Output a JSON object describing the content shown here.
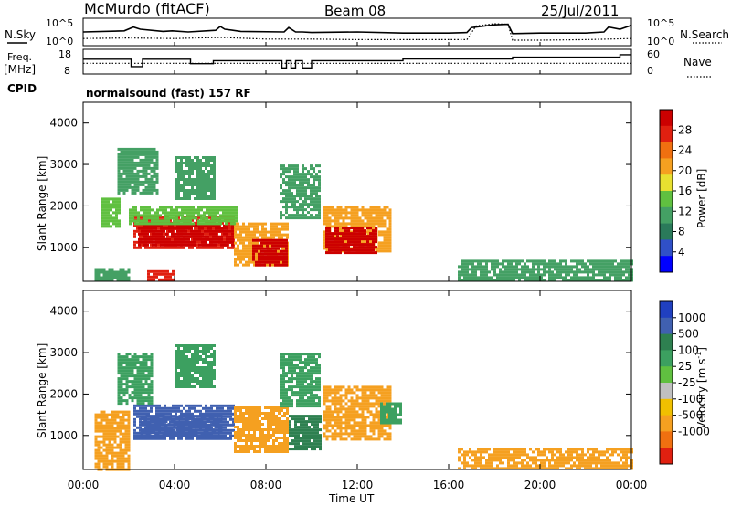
{
  "header": {
    "station": "McMurdo (fitACF)",
    "beam": "Beam 08",
    "date": "25/Jul/2011",
    "left_label_1": "N.Sky",
    "left_label_2_a": "Freq.",
    "left_label_2_b": "[MHz]",
    "left_label_3": "CPID",
    "right_label_1": "N.Search",
    "right_label_2": "Nave",
    "cpid_text": "normalsound (fast) 157 RF"
  },
  "chart_data": [
    {
      "type": "line",
      "panel": "noise",
      "series": [
        {
          "name": "N.Sky",
          "x": [
            0,
            1.8,
            2.2,
            2.5,
            3.5,
            3.9,
            4.6,
            5.8,
            6.0,
            6.2,
            6.9,
            8.8,
            9.0,
            9.3,
            9.6,
            10.0,
            12.0,
            14.0,
            16.0,
            16.8,
            17.0,
            18.0,
            18.6,
            18.8,
            20.0,
            22.0,
            22.8,
            23.0,
            23.5,
            24.0
          ],
          "y": [
            2.5,
            2.7,
            3.4,
            3.0,
            2.6,
            2.7,
            2.5,
            2.8,
            3.5,
            3.0,
            2.6,
            2.5,
            3.3,
            2.5,
            2.5,
            2.4,
            2.5,
            2.3,
            2.3,
            2.4,
            3.3,
            3.8,
            3.9,
            2.2,
            2.3,
            2.3,
            2.5,
            3.4,
            3.0,
            3.7
          ]
        },
        {
          "name": "N.Search",
          "x": [
            0,
            2,
            4,
            6,
            8,
            10,
            12,
            14,
            16,
            16.8,
            17.2,
            18.0,
            18.6,
            18.8,
            20,
            22,
            23,
            24
          ],
          "y": [
            1.3,
            1.4,
            1.3,
            1.5,
            1.2,
            1.2,
            1.1,
            1.1,
            1.1,
            1.1,
            3.6,
            4.0,
            3.9,
            1.0,
            1.0,
            1.1,
            1.2,
            1.3
          ]
        }
      ],
      "y_left_ticks": [
        "10^5",
        "10^0"
      ],
      "y_right_ticks": [
        "10^5",
        "10^0"
      ],
      "ylim": [
        0,
        5
      ]
    },
    {
      "type": "line",
      "panel": "frequency",
      "series": [
        {
          "name": "Freq.",
          "x": [
            0,
            1.9,
            2.1,
            2.4,
            2.6,
            4.5,
            4.7,
            5.5,
            5.7,
            6.2,
            8.5,
            8.7,
            8.9,
            9.1,
            9.3,
            9.6,
            10.0,
            13.8,
            14.0,
            18.6,
            18.8,
            19.5,
            23.0,
            23.5,
            24.0
          ],
          "y": [
            14,
            14,
            11,
            11,
            14,
            14,
            12.2,
            12.2,
            13.4,
            13.4,
            13.4,
            10.5,
            13.4,
            10.5,
            13.4,
            10.5,
            13.4,
            13.4,
            14.1,
            14.1,
            14.8,
            14.8,
            14.8,
            15.8,
            15.8
          ]
        },
        {
          "name": "Nave",
          "x": [
            0,
            4,
            8,
            12,
            16,
            20,
            24
          ],
          "y": [
            26,
            26,
            26,
            26,
            26,
            26,
            26
          ]
        }
      ],
      "y_left_ticks": [
        18,
        8
      ],
      "y_right_ticks": [
        60,
        0
      ],
      "ylim": [
        8,
        18
      ]
    },
    {
      "type": "heatmap",
      "panel": "power",
      "xlabel": "",
      "ylabel": "Slant Range [km]",
      "xlim": [
        0,
        24
      ],
      "ylim": [
        180,
        4500
      ],
      "y_ticks": [
        1000,
        2000,
        3000,
        4000
      ],
      "colorbar_label": "Power [dB]",
      "colorbar_ticks": [
        4,
        8,
        12,
        16,
        20,
        24,
        28
      ],
      "colorbar_colors": [
        "#0000ff",
        "#3050c8",
        "#2a7a5a",
        "#44a064",
        "#60c040",
        "#e8e030",
        "#f5a020",
        "#f07010",
        "#e02010",
        "#cc0000"
      ],
      "regions": [
        {
          "t": [
            2.2,
            6.6
          ],
          "r": [
            1000,
            1750
          ],
          "value": 24
        },
        {
          "t": [
            2.4,
            6.5
          ],
          "r": [
            1050,
            1550
          ],
          "value": 28
        },
        {
          "t": [
            6.6,
            9.0
          ],
          "r": [
            600,
            1600
          ],
          "value": 20
        },
        {
          "t": [
            7.4,
            8.9
          ],
          "r": [
            550,
            1200
          ],
          "value": 28
        },
        {
          "t": [
            10.5,
            13.5
          ],
          "r": [
            900,
            2000
          ],
          "value": 20
        },
        {
          "t": [
            10.6,
            12.8
          ],
          "r": [
            900,
            1500
          ],
          "value": 28
        },
        {
          "t": [
            0.8,
            1.6
          ],
          "r": [
            1500,
            2200
          ],
          "value": 12
        },
        {
          "t": [
            2.0,
            6.8
          ],
          "r": [
            1600,
            2000
          ],
          "value": 12
        },
        {
          "t": [
            1.5,
            3.2
          ],
          "r": [
            2300,
            3400
          ],
          "value": 8
        },
        {
          "t": [
            4.0,
            5.8
          ],
          "r": [
            2200,
            3200
          ],
          "value": 8
        },
        {
          "t": [
            8.6,
            10.4
          ],
          "r": [
            1700,
            3000
          ],
          "value": 8
        },
        {
          "t": [
            0.5,
            2.0
          ],
          "r": [
            200,
            500
          ],
          "value": 8
        },
        {
          "t": [
            2.8,
            4.0
          ],
          "r": [
            200,
            450
          ],
          "value": 24
        },
        {
          "t": [
            16.4,
            24.0
          ],
          "r": [
            200,
            700
          ],
          "value": 8
        }
      ]
    },
    {
      "type": "heatmap",
      "panel": "velocity",
      "xlabel": "Time UT",
      "ylabel": "Slant Range [km]",
      "xlim": [
        0,
        24
      ],
      "ylim": [
        180,
        4500
      ],
      "x_ticks": [
        "00:00",
        "04:00",
        "08:00",
        "12:00",
        "16:00",
        "20:00",
        "00:00"
      ],
      "y_ticks": [
        1000,
        2000,
        3000,
        4000
      ],
      "colorbar_label": "Velocity [m s^-1]",
      "colorbar_ticks": [
        1000,
        500,
        100,
        25,
        -25,
        -100,
        -500,
        -1000
      ],
      "colorbar_colors": [
        "#2040c0",
        "#4060b0",
        "#2e8050",
        "#3ca060",
        "#60c040",
        "#c0c0c0",
        "#f0c000",
        "#f5a020",
        "#f07010",
        "#e02010"
      ],
      "regions": [
        {
          "t": [
            2.2,
            6.6
          ],
          "r": [
            900,
            1750
          ],
          "value": 800
        },
        {
          "t": [
            2.5,
            6.0
          ],
          "r": [
            1000,
            1500
          ],
          "value": 1000
        },
        {
          "t": [
            6.6,
            9.0
          ],
          "r": [
            600,
            1700
          ],
          "value": -150
        },
        {
          "t": [
            9.0,
            10.4
          ],
          "r": [
            700,
            1500
          ],
          "value": 400
        },
        {
          "t": [
            10.5,
            13.5
          ],
          "r": [
            900,
            2200
          ],
          "value": -200
        },
        {
          "t": [
            13.0,
            13.9
          ],
          "r": [
            1300,
            1800
          ],
          "value": 100
        },
        {
          "t": [
            1.5,
            3.0
          ],
          "r": [
            1800,
            3000
          ],
          "value": 100
        },
        {
          "t": [
            0.5,
            2.0
          ],
          "r": [
            200,
            1600
          ],
          "value": -100
        },
        {
          "t": [
            4.0,
            5.8
          ],
          "r": [
            2200,
            3200
          ],
          "value": 100
        },
        {
          "t": [
            8.6,
            10.4
          ],
          "r": [
            1700,
            3000
          ],
          "value": 100
        },
        {
          "t": [
            16.4,
            24.0
          ],
          "r": [
            200,
            700
          ],
          "value": -100
        }
      ]
    }
  ]
}
